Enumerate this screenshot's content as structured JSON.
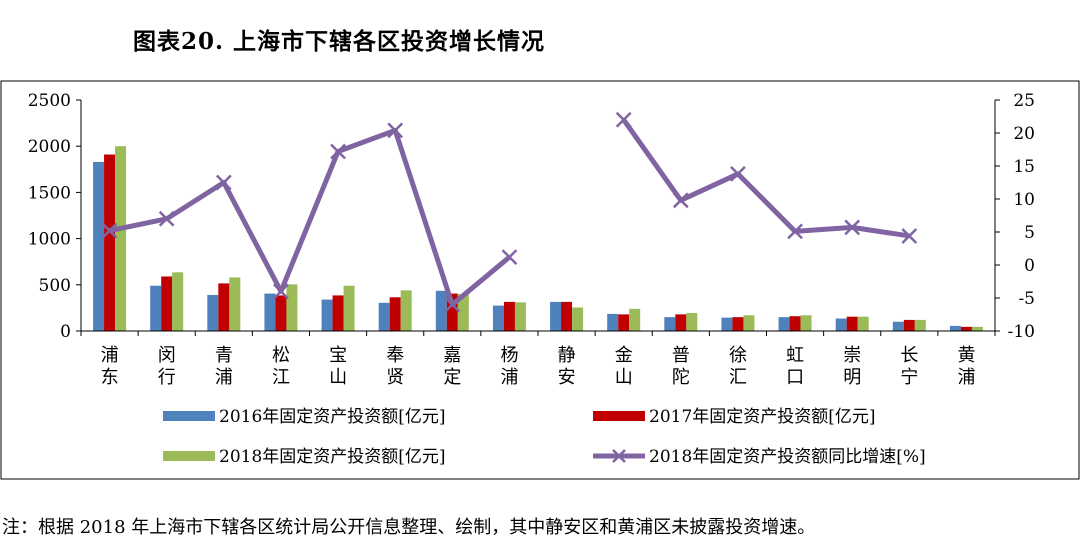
{
  "title": "图表20. 上海市下辖各区投资增长情况",
  "note": "注：根据 2018 年上海市下辖各区统计局公开信息整理、绘制，其中静安区和黄浦区未披露投资增速。",
  "chart_data": {
    "type": "bar",
    "categories": [
      "浦东",
      "闵行",
      "青浦",
      "松江",
      "宝山",
      "奉贤",
      "嘉定",
      "杨浦",
      "静安",
      "金山",
      "普陀",
      "徐汇",
      "虹口",
      "崇明",
      "长宁",
      "黄浦"
    ],
    "series": [
      {
        "name": "2016年固定资产投资额[亿元]",
        "type": "bar",
        "axis": "left",
        "color": "#4f81bd",
        "values": [
          1830,
          490,
          390,
          405,
          340,
          305,
          435,
          275,
          315,
          185,
          150,
          145,
          150,
          135,
          100,
          55
        ]
      },
      {
        "name": "2017年固定资产投资额[亿元]",
        "type": "bar",
        "axis": "left",
        "color": "#c00000",
        "values": [
          1910,
          590,
          515,
          385,
          385,
          365,
          405,
          315,
          315,
          180,
          180,
          150,
          160,
          155,
          120,
          45
        ]
      },
      {
        "name": "2018年固定资产投资额[亿元]",
        "type": "bar",
        "axis": "left",
        "color": "#9bbb59",
        "values": [
          2000,
          635,
          580,
          505,
          490,
          440,
          400,
          310,
          255,
          240,
          195,
          170,
          170,
          155,
          120,
          45
        ]
      },
      {
        "name": "2018年固定资产投资额同比增速[%]",
        "type": "line",
        "axis": "right",
        "color": "#8064a2",
        "values": [
          5.2,
          7.0,
          12.5,
          -4.0,
          17.2,
          20.4,
          -6.0,
          1.2,
          null,
          22.0,
          9.8,
          13.8,
          5.1,
          5.7,
          4.4,
          null
        ]
      }
    ],
    "y_left": {
      "min": 0,
      "max": 2500,
      "ticks": [
        0,
        500,
        1000,
        1500,
        2000,
        2500
      ]
    },
    "y_right": {
      "min": -10,
      "max": 25,
      "ticks": [
        -10,
        -5,
        0,
        5,
        10,
        15,
        20,
        25
      ]
    },
    "grid": false,
    "legend_position": "bottom"
  }
}
